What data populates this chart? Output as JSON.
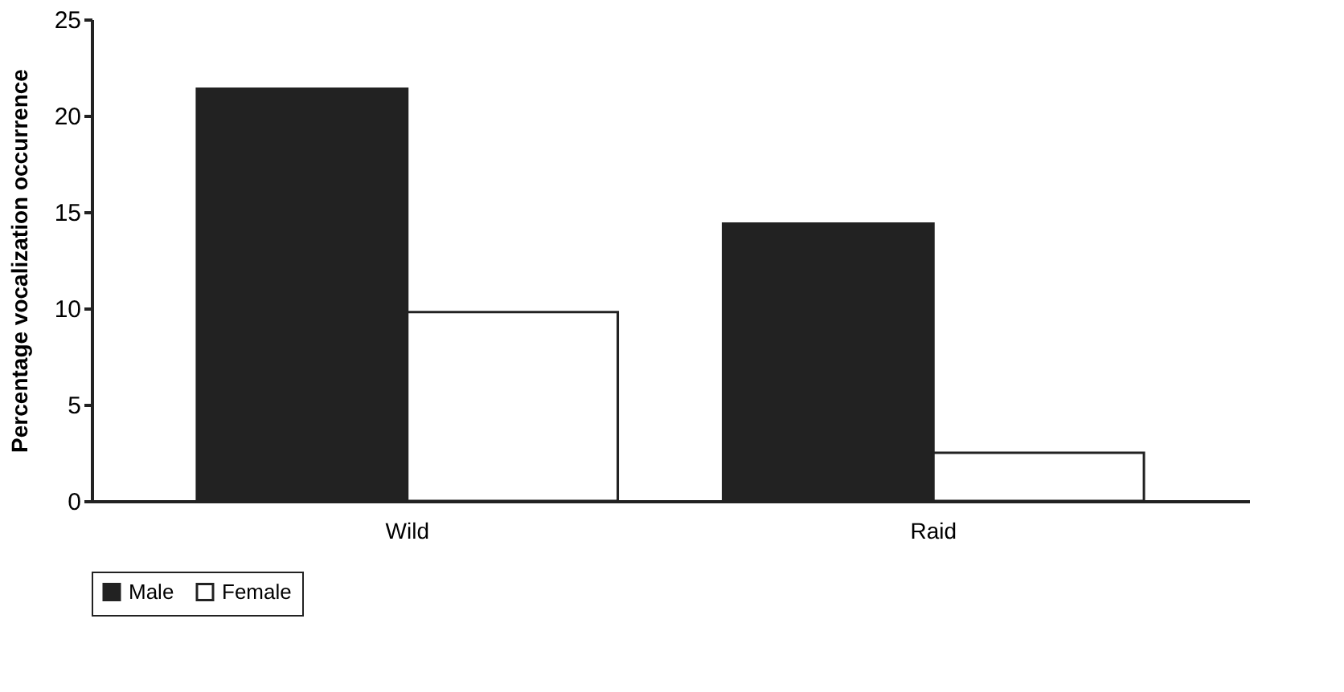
{
  "chart_data": {
    "type": "bar",
    "ylabel": "Percentage vocalization occurrence",
    "categories": [
      "Wild",
      "Raid"
    ],
    "series": [
      {
        "name": "Male",
        "color": "#222222",
        "values": [
          21.4,
          14.4
        ]
      },
      {
        "name": "Female",
        "color": "#ffffff",
        "values": [
          9.8,
          2.5
        ]
      }
    ],
    "ylim": [
      0,
      25
    ],
    "yticks": [
      0,
      5,
      10,
      15,
      20,
      25
    ],
    "grid": false,
    "legend": "bottom"
  }
}
